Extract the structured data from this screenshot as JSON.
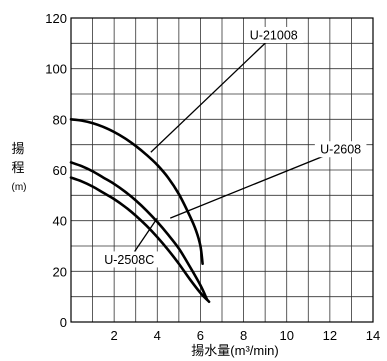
{
  "chart_data": {
    "type": "line",
    "title": "",
    "xlabel": "揚水量(m³/min)",
    "ylabel_chars": [
      "揚",
      "程"
    ],
    "ylabel_unit": "(m)",
    "xlim": [
      0,
      14
    ],
    "ylim": [
      0,
      120
    ],
    "x_ticks": [
      2,
      4,
      6,
      8,
      10,
      12,
      14
    ],
    "x_tick_labels": [
      "2",
      "4",
      "6",
      "8",
      "10",
      "12",
      "14"
    ],
    "y_ticks": [
      0,
      20,
      40,
      60,
      80,
      100,
      120
    ],
    "y_tick_labels": [
      "0",
      "20",
      "40",
      "60",
      "80",
      "100",
      "120"
    ],
    "x_minor_step": 1,
    "y_minor_step": 10,
    "grid": true,
    "legend": "none",
    "series": [
      {
        "name": "U-21008",
        "label_pos": [
          9.4,
          113.3
        ],
        "leader_end": [
          3.7,
          67.0
        ],
        "x": [
          0,
          0.5,
          1,
          1.5,
          2,
          2.5,
          3,
          3.5,
          4,
          4.5,
          5,
          5.5,
          5.8,
          6.0,
          6.1
        ],
        "y": [
          80,
          79.5,
          78.5,
          77,
          75,
          72.5,
          69.5,
          66,
          62,
          57,
          50.5,
          42,
          36,
          30,
          23
        ]
      },
      {
        "name": "U-2608",
        "label_pos": [
          12.5,
          68.2
        ],
        "leader_end": [
          4.6,
          41.0
        ],
        "x": [
          0,
          0.5,
          1,
          1.5,
          2,
          2.5,
          3,
          3.5,
          4,
          4.5,
          5,
          5.5,
          6.0,
          6.3
        ],
        "y": [
          63,
          61.5,
          59.5,
          57,
          54.5,
          51.5,
          48,
          44,
          39.5,
          34.5,
          29,
          22,
          14.5,
          9
        ]
      },
      {
        "name": "U-2508C",
        "label_pos": [
          2.7,
          24.7
        ],
        "leader_end": [
          4.0,
          41.0
        ],
        "x": [
          0,
          0.5,
          1,
          1.5,
          2,
          2.5,
          3,
          3.5,
          4,
          4.5,
          5,
          5.5,
          6.0,
          6.4
        ],
        "y": [
          57,
          55.5,
          53.5,
          51,
          48.5,
          45.5,
          42,
          38,
          33.5,
          28.5,
          23,
          17,
          11.5,
          8
        ]
      }
    ]
  }
}
